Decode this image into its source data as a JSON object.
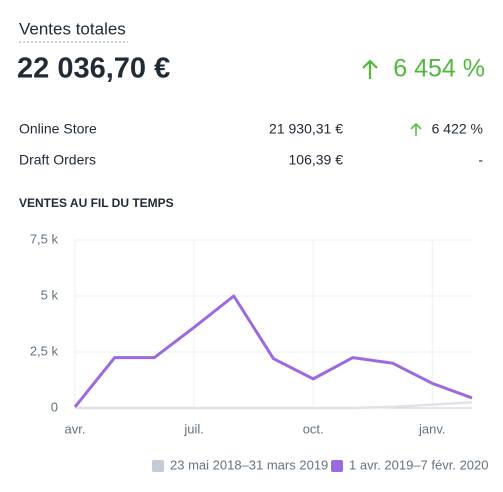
{
  "header": {
    "title": "Ventes totales",
    "total": "22 036,70 €",
    "change": "6 454 %"
  },
  "table": {
    "rows": [
      [
        "Online Store",
        "21 930,31 €",
        "6 422 %"
      ],
      [
        "Draft Orders",
        "106,39 €",
        "-"
      ]
    ]
  },
  "chart_data": {
    "type": "line",
    "title": "VENTES AU FIL DU TEMPS",
    "categories": [
      "avr.",
      null,
      null,
      "juil.",
      null,
      null,
      "oct.",
      null,
      null,
      "janv.",
      null
    ],
    "series": [
      {
        "name": "23 mai 2018–31 mars 2019",
        "color": "#dfe3e8",
        "values": [
          0,
          0,
          0,
          0,
          0,
          0,
          0,
          0,
          50,
          150,
          250
        ]
      },
      {
        "name": "1 avr. 2019–7 févr. 2020",
        "color": "#9c6ade",
        "values": [
          50,
          2250,
          2250,
          3600,
          5000,
          2200,
          1300,
          2250,
          2000,
          1100,
          450
        ]
      }
    ],
    "ylim": [
      0,
      7500
    ],
    "yticks": [
      0,
      {
        "value": 2500,
        "label": "2,5 k"
      },
      {
        "value": 5000,
        "label": "5 k"
      },
      {
        "value": 7500,
        "label": "7,5 k"
      }
    ],
    "grid": true,
    "legend": "bottom-right"
  }
}
